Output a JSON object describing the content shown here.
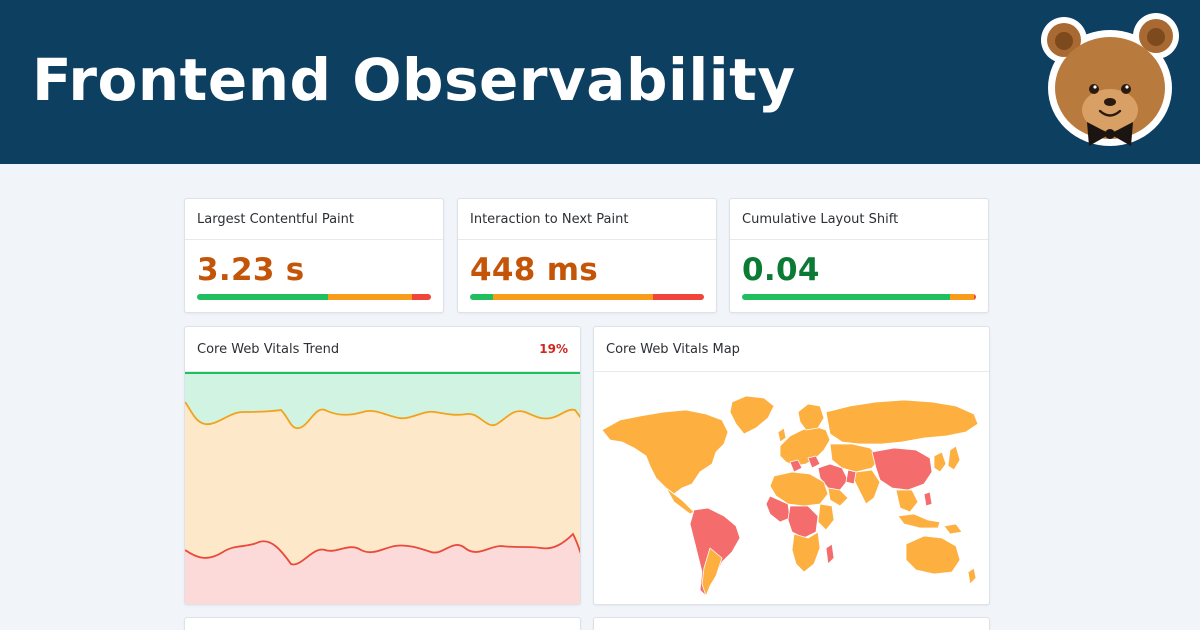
{
  "banner": {
    "title": "Frontend Observability"
  },
  "metrics": [
    {
      "label": "Largest Contentful Paint",
      "value": "3.23 s",
      "color": "#c45508",
      "distribution": {
        "good": 0.56,
        "needs_improvement": 0.36,
        "poor": 0.08
      }
    },
    {
      "label": "Interaction to Next Paint",
      "value": "448 ms",
      "color": "#c45508",
      "distribution": {
        "good": 0.1,
        "needs_improvement": 0.68,
        "poor": 0.22
      }
    },
    {
      "label": "Cumulative Layout Shift",
      "value": "0.04",
      "color": "#0b7a34",
      "distribution": {
        "good": 0.89,
        "needs_improvement": 0.1,
        "poor": 0.01
      }
    }
  ],
  "trend": {
    "title": "Core Web Vitals Trend",
    "badge": "19%",
    "badge_color": "#d1261f"
  },
  "map": {
    "title": "Core Web Vitals Map"
  },
  "colors": {
    "good": "#1fbf5f",
    "needs_improvement": "#f89c1c",
    "poor": "#f0453a",
    "good_fill": "#d1f3e1",
    "ni_fill": "#fde8c9",
    "poor_fill": "#fcdada",
    "map_ni": "#fdb040",
    "map_poor": "#f46c6c",
    "banner": "#0d3f61"
  },
  "icons": {
    "logo": "bear-with-bowtie-icon"
  }
}
